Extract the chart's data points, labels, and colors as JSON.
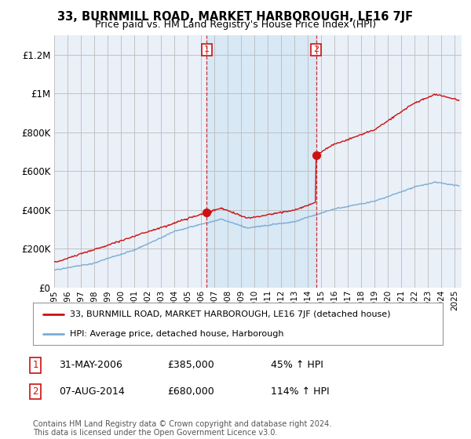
{
  "title": "33, BURNMILL ROAD, MARKET HARBOROUGH, LE16 7JF",
  "subtitle": "Price paid vs. HM Land Registry's House Price Index (HPI)",
  "legend_line1": "33, BURNMILL ROAD, MARKET HARBOROUGH, LE16 7JF (detached house)",
  "legend_line2": "HPI: Average price, detached house, Harborough",
  "annotation1_label": "1",
  "annotation1_date": "31-MAY-2006",
  "annotation1_price": "£385,000",
  "annotation1_hpi": "45% ↑ HPI",
  "annotation2_label": "2",
  "annotation2_date": "07-AUG-2014",
  "annotation2_price": "£680,000",
  "annotation2_hpi": "114% ↑ HPI",
  "footer": "Contains HM Land Registry data © Crown copyright and database right 2024.\nThis data is licensed under the Open Government Licence v3.0.",
  "hpi_color": "#7aadd4",
  "price_color": "#cc1111",
  "annotation_color": "#cc1111",
  "shade_color": "#d8e8f5",
  "background_plot": "#eaf0f8",
  "background_fig": "#ffffff",
  "ylim": [
    0,
    1300000
  ],
  "yticks": [
    0,
    200000,
    400000,
    600000,
    800000,
    1000000,
    1200000
  ],
  "sale1_x": 2006.42,
  "sale1_y": 385000,
  "sale2_x": 2014.6,
  "sale2_y": 680000,
  "vline1_x": 2006.42,
  "vline2_x": 2014.6,
  "xmin": 1995,
  "xmax": 2025.5
}
